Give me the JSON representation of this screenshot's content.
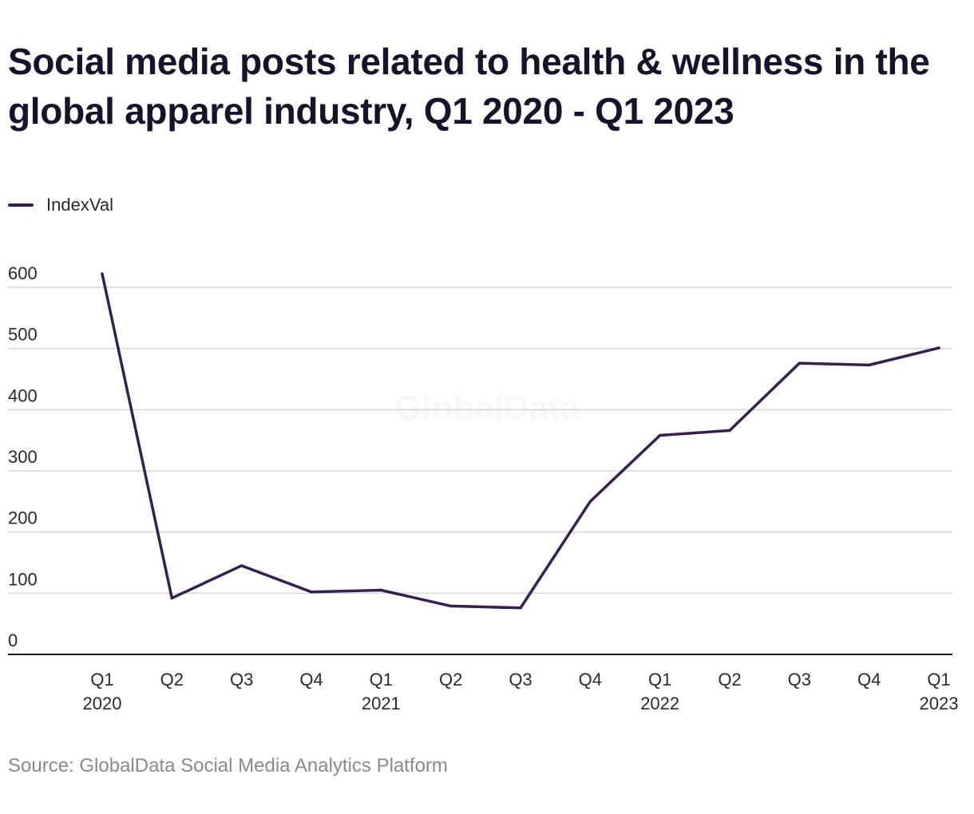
{
  "chart_data": {
    "type": "line",
    "title": "Social media posts related to health & wellness in the global apparel industry, Q1 2020 - Q1 2023",
    "source": "Source: GlobalData Social Media Analytics Platform",
    "watermark": "GlobalData",
    "legend_position": "top-left",
    "grid": true,
    "ylim": [
      0,
      600
    ],
    "yticks": [
      0,
      100,
      200,
      300,
      400,
      500,
      600
    ],
    "categories": [
      [
        "Q1",
        "2020"
      ],
      [
        "Q2",
        ""
      ],
      [
        "Q3",
        ""
      ],
      [
        "Q4",
        ""
      ],
      [
        "Q1",
        "2021"
      ],
      [
        "Q2",
        ""
      ],
      [
        "Q3",
        ""
      ],
      [
        "Q4",
        ""
      ],
      [
        "Q1",
        "2022"
      ],
      [
        "Q2",
        ""
      ],
      [
        "Q3",
        ""
      ],
      [
        "Q4",
        ""
      ],
      [
        "Q1",
        "2023"
      ]
    ],
    "series": [
      {
        "name": "IndexVal",
        "color": "#33214f",
        "values": [
          622,
          92,
          145,
          102,
          105,
          79,
          76,
          250,
          358,
          366,
          476,
          473,
          501
        ]
      }
    ]
  }
}
